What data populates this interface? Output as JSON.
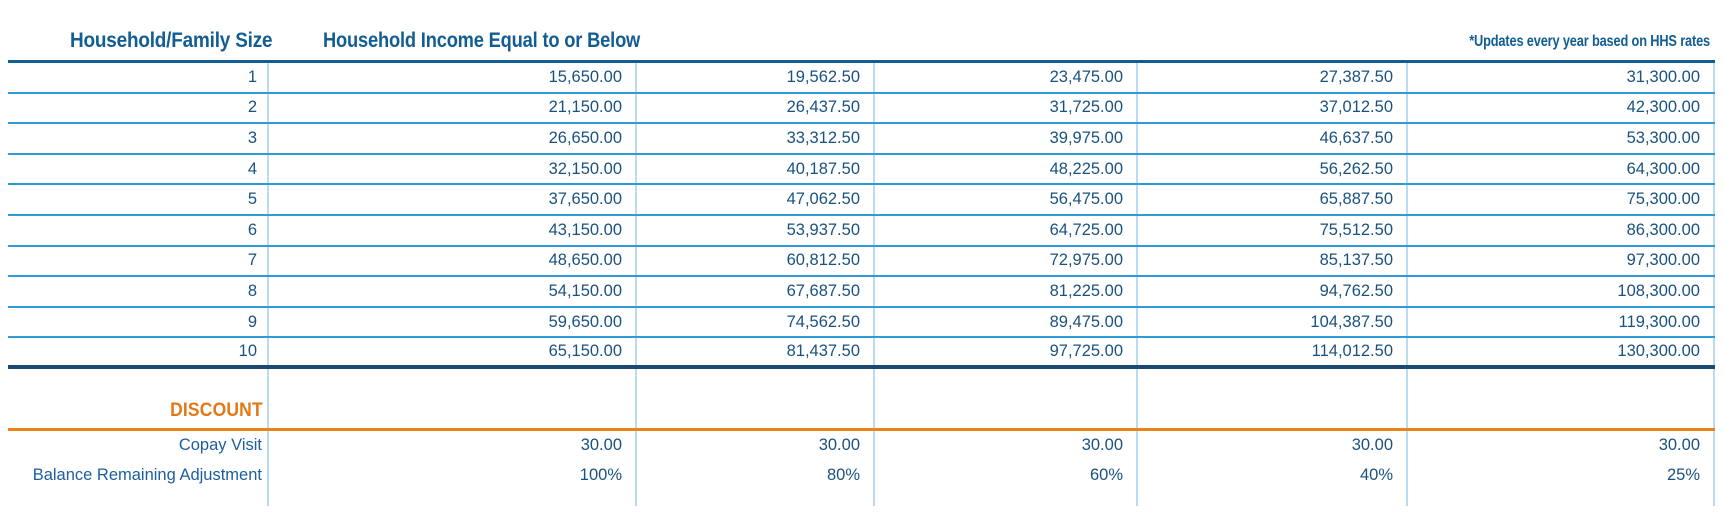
{
  "colors": {
    "header-blue": "#125d93",
    "value-blue": "#1a527f",
    "label-blue": "#1c5e9e",
    "sep-blue": "#2f9ad5",
    "header-line": "#0f5f95",
    "navy-line": "#1a4971",
    "vline": "#b9ddef",
    "orange": "#e07916",
    "orange-line": "#e8821a"
  },
  "table": {
    "column_headers": {
      "household_size": "Household/Family Size",
      "income": "Household Income Equal to or Below",
      "updates_note": "*Updates every year based on HHS rates"
    },
    "income_rows": [
      {
        "household_size": "1",
        "values": [
          "15,650.00",
          "19,562.50",
          "23,475.00",
          "27,387.50",
          "31,300.00"
        ]
      },
      {
        "household_size": "2",
        "values": [
          "21,150.00",
          "26,437.50",
          "31,725.00",
          "37,012.50",
          "42,300.00"
        ]
      },
      {
        "household_size": "3",
        "values": [
          "26,650.00",
          "33,312.50",
          "39,975.00",
          "46,637.50",
          "53,300.00"
        ]
      },
      {
        "household_size": "4",
        "values": [
          "32,150.00",
          "40,187.50",
          "48,225.00",
          "56,262.50",
          "64,300.00"
        ]
      },
      {
        "household_size": "5",
        "values": [
          "37,650.00",
          "47,062.50",
          "56,475.00",
          "65,887.50",
          "75,300.00"
        ]
      },
      {
        "household_size": "6",
        "values": [
          "43,150.00",
          "53,937.50",
          "64,725.00",
          "75,512.50",
          "86,300.00"
        ]
      },
      {
        "household_size": "7",
        "values": [
          "48,650.00",
          "60,812.50",
          "72,975.00",
          "85,137.50",
          "97,300.00"
        ]
      },
      {
        "household_size": "8",
        "values": [
          "54,150.00",
          "67,687.50",
          "81,225.00",
          "94,762.50",
          "108,300.00"
        ]
      },
      {
        "household_size": "9",
        "values": [
          "59,650.00",
          "74,562.50",
          "89,475.00",
          "104,387.50",
          "119,300.00"
        ]
      },
      {
        "household_size": "10",
        "values": [
          "65,150.00",
          "81,437.50",
          "97,725.00",
          "114,012.50",
          "130,300.00"
        ]
      }
    ],
    "discount_section": {
      "title": "DISCOUNT",
      "rows": [
        {
          "label": "Copay Visit",
          "values": [
            "30.00",
            "30.00",
            "30.00",
            "30.00",
            "30.00"
          ]
        },
        {
          "label": "Balance Remaining Adjustment",
          "values": [
            "100%",
            "80%",
            "60%",
            "40%",
            "25%"
          ]
        }
      ]
    }
  }
}
